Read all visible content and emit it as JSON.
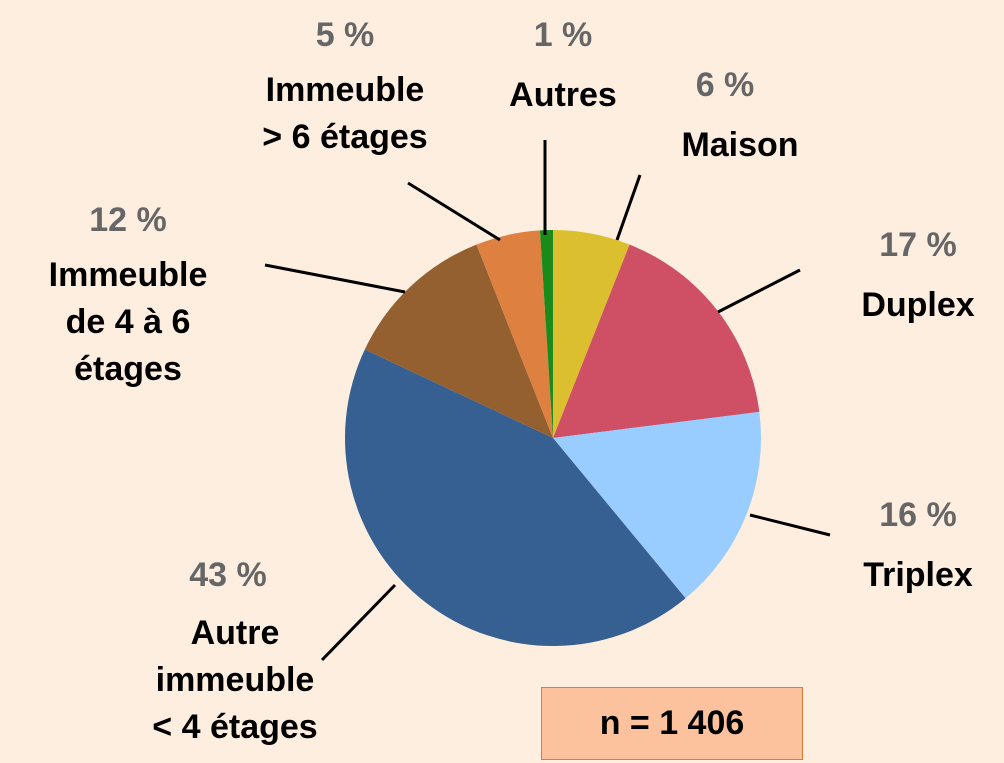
{
  "chart_data": {
    "type": "pie",
    "categories": [
      "Maison",
      "Duplex",
      "Triplex",
      "Autre\nimmeuble\n< 4 étages",
      "Immeuble\nde 4 à 6\nétages",
      "Immeuble\n> 6 étages",
      "Autres"
    ],
    "values": [
      6,
      17,
      16,
      43,
      12,
      5,
      1
    ],
    "value_labels": [
      "6 %",
      "17 %",
      "16 %",
      "43 %",
      "12 %",
      "5 %",
      "1 %"
    ],
    "colors": [
      "#dcbf2f",
      "#cf4f65",
      "#99ccff",
      "#376092",
      "#956030",
      "#dd8040",
      "#1a8a1a"
    ],
    "annotation": "n = 1 406"
  }
}
